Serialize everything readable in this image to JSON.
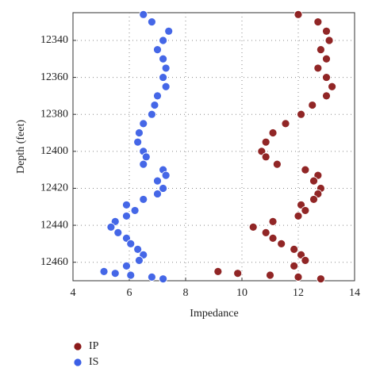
{
  "chart_data": {
    "type": "scatter",
    "xlabel": "Impedance",
    "ylabel": "Depth (feet)",
    "xlim": [
      4,
      14
    ],
    "xticks": [
      4,
      6,
      8,
      10,
      12,
      14
    ],
    "ylim": [
      12325,
      12470
    ],
    "yticks": [
      12340,
      12360,
      12380,
      12400,
      12420,
      12440,
      12460
    ],
    "y_inverted": true,
    "grid": true,
    "legend": "bottom-left",
    "series": [
      {
        "name": "IP",
        "color": "#8b1a1a",
        "x": [
          12.0,
          12.7,
          13.0,
          13.1,
          12.8,
          13.0,
          12.7,
          13.0,
          13.2,
          13.0,
          12.5,
          12.1,
          11.55,
          11.1,
          10.85,
          10.7,
          10.85,
          11.25,
          12.25,
          12.7,
          12.55,
          12.8,
          12.7,
          12.55,
          12.1,
          12.25,
          12.0,
          11.1,
          10.4,
          10.85,
          11.1,
          11.4,
          11.85,
          12.1,
          12.25,
          11.85,
          9.15,
          9.85,
          11.0,
          12.0,
          12.8
        ],
        "y": [
          12326,
          12330,
          12335,
          12340,
          12345,
          12350,
          12355,
          12360,
          12365,
          12370,
          12375,
          12380,
          12385,
          12390,
          12395,
          12400,
          12403,
          12407,
          12410,
          12413,
          12416,
          12420,
          12423,
          12426,
          12429,
          12432,
          12435,
          12438,
          12441,
          12444,
          12447,
          12450,
          12453,
          12456,
          12459,
          12462,
          12465,
          12466,
          12467,
          12468,
          12469
        ]
      },
      {
        "name": "IS",
        "color": "#3b5fe6",
        "x": [
          6.5,
          6.8,
          7.4,
          7.2,
          7.0,
          7.2,
          7.3,
          7.2,
          7.3,
          7.0,
          6.9,
          6.8,
          6.5,
          6.35,
          6.3,
          6.5,
          6.6,
          6.5,
          7.2,
          7.3,
          7.0,
          7.2,
          7.0,
          6.5,
          5.9,
          6.2,
          5.9,
          5.5,
          5.35,
          5.6,
          5.9,
          6.05,
          6.3,
          6.5,
          6.35,
          5.9,
          5.1,
          5.5,
          6.05,
          6.8,
          7.2
        ],
        "y": [
          12326,
          12330,
          12335,
          12340,
          12345,
          12350,
          12355,
          12360,
          12365,
          12370,
          12375,
          12380,
          12385,
          12390,
          12395,
          12400,
          12403,
          12407,
          12410,
          12413,
          12416,
          12420,
          12423,
          12426,
          12429,
          12432,
          12435,
          12438,
          12441,
          12444,
          12447,
          12450,
          12453,
          12456,
          12459,
          12462,
          12465,
          12466,
          12467,
          12468,
          12469
        ]
      }
    ]
  }
}
